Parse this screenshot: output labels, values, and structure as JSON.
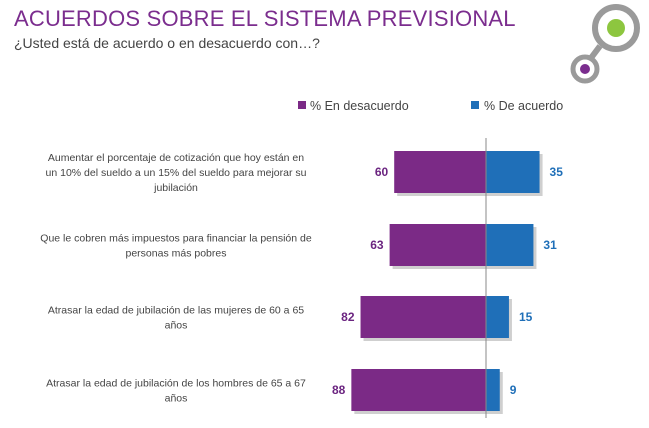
{
  "header": {
    "title": "ACUERDOS SOBRE EL SISTEMA PREVISIONAL",
    "subtitle": "¿Usted está de acuerdo o en desacuerdo con…?"
  },
  "colors": {
    "title": "#7b2d8e",
    "disagree": "#7b2a86",
    "agree": "#1f6fb8",
    "logo_gray": "#9a9a9a",
    "logo_green": "#8dc63f",
    "logo_purple": "#7b2d8e"
  },
  "chart_data": {
    "type": "bar",
    "orientation": "horizontal-diverging",
    "series": [
      {
        "name": "% En desacuerdo",
        "values": [
          60,
          63,
          82,
          88
        ]
      },
      {
        "name": "% De acuerdo",
        "values": [
          35,
          31,
          15,
          9
        ]
      }
    ],
    "categories": [
      [
        "Aumentar el porcentaje de cotización que hoy están en",
        "un 10% del sueldo a un 15% del sueldo para mejorar su",
        "jubilación"
      ],
      [
        "Que le cobren más impuestos para financiar la pensión de",
        "personas más pobres"
      ],
      [
        "Atrasar la edad de jubilación de las mujeres de 60 a 65",
        "años"
      ],
      [
        "Atrasar la edad de jubilación de los hombres de 65 a 67",
        "años"
      ]
    ],
    "xlim": [
      -100,
      100
    ],
    "legend_position": "top-center",
    "grid": false
  }
}
